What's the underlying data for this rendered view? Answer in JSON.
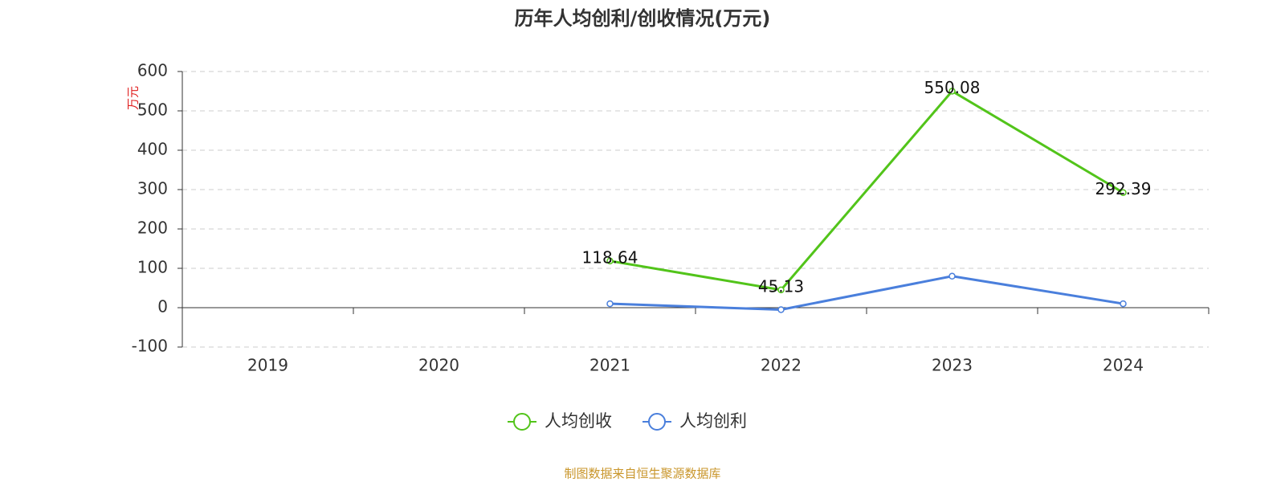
{
  "chart_data": {
    "type": "line",
    "title": "历年人均创利/创收情况(万元)",
    "y_label": "万元",
    "categories": [
      "2019",
      "2020",
      "2021",
      "2022",
      "2023",
      "2024"
    ],
    "series": [
      {
        "name": "人均创收",
        "color": "#52c41a",
        "values": [
          null,
          null,
          118.64,
          45.13,
          550.08,
          292.39
        ],
        "show_labels": true
      },
      {
        "name": "人均创利",
        "color": "#4a7fdc",
        "values": [
          null,
          null,
          10,
          -5,
          80,
          10
        ],
        "show_labels": false
      }
    ],
    "ylim": [
      -100,
      600
    ],
    "yticks": [
      -100,
      0,
      100,
      200,
      300,
      400,
      500,
      600
    ],
    "grid": true,
    "legend": "bottom",
    "source": "制图数据来自恒生聚源数据库"
  }
}
